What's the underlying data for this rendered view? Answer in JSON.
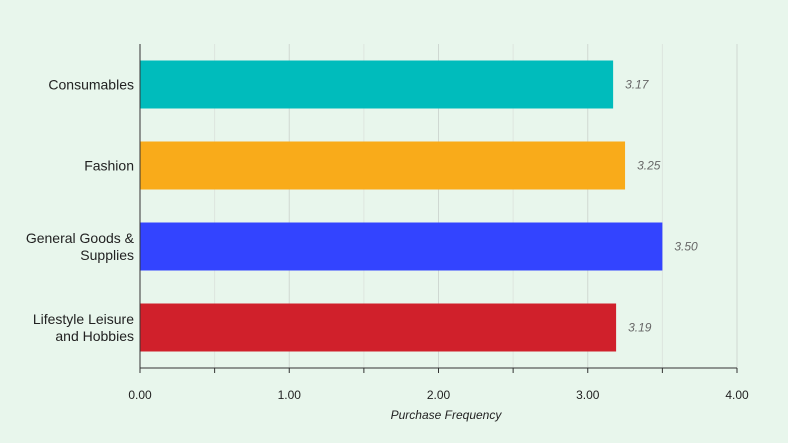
{
  "chart_data": {
    "type": "bar",
    "orientation": "horizontal",
    "categories": [
      [
        "Consumables"
      ],
      [
        "Fashion"
      ],
      [
        "General Goods &",
        "Supplies"
      ],
      [
        "Lifestyle Leisure",
        "and Hobbies"
      ]
    ],
    "values": [
      3.17,
      3.25,
      3.5,
      3.19
    ],
    "value_labels": [
      "3.17",
      "3.25",
      "3.50",
      "3.19"
    ],
    "colors": [
      "#00bcbc",
      "#f9ab1a",
      "#3344ff",
      "#d0202b"
    ],
    "xlabel": "Purchase Frequency",
    "xlim": [
      0,
      4
    ],
    "x_ticks": [
      0,
      1,
      2,
      3,
      4
    ],
    "x_tick_labels": [
      "0.00",
      "1.00",
      "2.00",
      "3.00",
      "4.00"
    ],
    "grid": true,
    "background": "#e8f6ec"
  }
}
